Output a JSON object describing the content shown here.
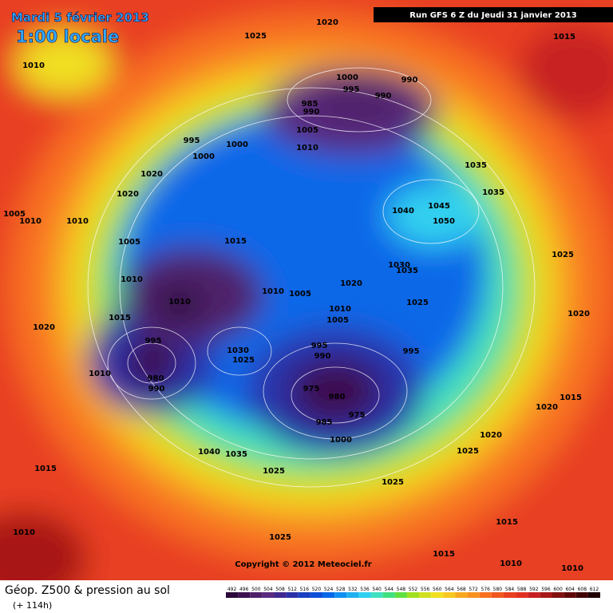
{
  "header": {
    "date": "Mardi 5 février 2013",
    "time": "1:00 locale",
    "run": "Run GFS 6 Z du Jeudi 31 janvier 2013"
  },
  "footer": {
    "title": "Géop. Z500 & pression au sol",
    "lead": "(+ 114h)",
    "copyright": "Copyright © 2012 Meteociel.fr"
  },
  "scale": {
    "values": [
      492,
      496,
      500,
      504,
      508,
      512,
      516,
      520,
      524,
      528,
      532,
      536,
      540,
      544,
      548,
      552,
      556,
      560,
      564,
      568,
      572,
      576,
      580,
      584,
      588,
      592,
      596,
      600,
      604,
      608,
      612
    ],
    "colors": [
      "#2a0a3a",
      "#3d1050",
      "#50206a",
      "#5a2a80",
      "#402890",
      "#2a30a8",
      "#1840c0",
      "#1050d8",
      "#0868e8",
      "#1090f0",
      "#20b0f0",
      "#30d0f0",
      "#40e0c0",
      "#40e080",
      "#60e040",
      "#a0e020",
      "#d0e020",
      "#f0e020",
      "#f8c820",
      "#f8a820",
      "#f89020",
      "#f87020",
      "#f05820",
      "#e84020",
      "#e03020",
      "#c82020",
      "#a81818",
      "#801010",
      "#600808",
      "#400404",
      "#200000"
    ]
  },
  "isobar_labels": [
    "1025",
    "1020",
    "1015",
    "1010",
    "1000",
    "995",
    "990",
    "985",
    "990",
    "990",
    "1005",
    "995",
    "1000",
    "1010",
    "1000",
    "1035",
    "1020",
    "1035",
    "1020",
    "1005",
    "1010",
    "1010",
    "1040",
    "1045",
    "1050",
    "1005",
    "1015",
    "1025",
    "1010",
    "1010",
    "1005",
    "1020",
    "1030",
    "1035",
    "1010",
    "1025",
    "1015",
    "1010",
    "1005",
    "1020",
    "1020",
    "995",
    "995",
    "995",
    "1030",
    "990",
    "1025",
    "1010",
    "980",
    "1015",
    "975",
    "980",
    "990",
    "975",
    "985",
    "1020",
    "1000",
    "1020",
    "1040",
    "1035",
    "1025",
    "1015",
    "1025",
    "1025",
    "1015",
    "1010",
    "1025",
    "1015",
    "1010",
    "1010"
  ]
}
